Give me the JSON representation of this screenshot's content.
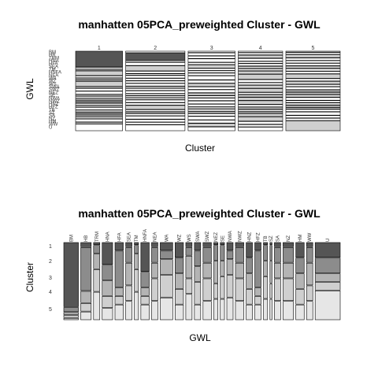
{
  "chart_data": [
    {
      "type": "mosaic",
      "title": "manhatten 05PCA_preweighted Cluster - GWL",
      "xlabel": "Cluster",
      "ylabel": "GWL",
      "clusters": [
        "1",
        "2",
        "3",
        "4",
        "5"
      ],
      "cluster_widths": [
        0.19,
        0.24,
        0.19,
        0.18,
        0.22
      ],
      "gwl_labels": [
        "BM",
        "HB",
        "TRM",
        "HNA",
        "HFA",
        "SEA",
        "TM",
        "HNFA",
        "NEA",
        "WA",
        "WZ",
        "WS",
        "SWA",
        "SWZ",
        "NEZ",
        "SE",
        "NWA",
        "NWZ",
        "HNZ",
        "HFZ",
        "TB",
        "SZ",
        "SA",
        "NZ",
        "HM",
        "WW",
        "U"
      ],
      "gwl_shares": [
        0.07,
        0.05,
        0.03,
        0.05,
        0.04,
        0.03,
        0.02,
        0.04,
        0.03,
        0.06,
        0.04,
        0.03,
        0.03,
        0.04,
        0.02,
        0.02,
        0.03,
        0.04,
        0.03,
        0.03,
        0.02,
        0.01,
        0.03,
        0.05,
        0.04,
        0.03,
        0.12
      ],
      "matrix": [
        [
          0.9,
          0.05,
          0.02,
          0.3,
          0.1,
          0.05,
          0.02,
          0.4,
          0.05,
          0.1,
          0.2,
          0.05,
          0.1,
          0.05,
          0.02,
          0.02,
          0.1,
          0.05,
          0.2,
          0.1,
          0.02,
          0.02,
          0.05,
          0.05,
          0.2,
          0.05,
          0.2
        ],
        [
          0.05,
          0.6,
          0.1,
          0.2,
          0.5,
          0.2,
          0.1,
          0.2,
          0.2,
          0.1,
          0.2,
          0.1,
          0.2,
          0.2,
          0.2,
          0.2,
          0.1,
          0.2,
          0.2,
          0.5,
          0.2,
          0.2,
          0.2,
          0.2,
          0.2,
          0.2,
          0.2
        ],
        [
          0.02,
          0.15,
          0.2,
          0.2,
          0.1,
          0.3,
          0.2,
          0.1,
          0.2,
          0.2,
          0.2,
          0.3,
          0.2,
          0.2,
          0.3,
          0.2,
          0.2,
          0.2,
          0.2,
          0.1,
          0.2,
          0.3,
          0.2,
          0.2,
          0.2,
          0.3,
          0.1
        ],
        [
          0.02,
          0.1,
          0.3,
          0.15,
          0.1,
          0.2,
          0.3,
          0.1,
          0.3,
          0.3,
          0.2,
          0.2,
          0.3,
          0.3,
          0.2,
          0.3,
          0.3,
          0.3,
          0.2,
          0.1,
          0.3,
          0.2,
          0.3,
          0.3,
          0.2,
          0.2,
          0.1
        ],
        [
          0.01,
          0.1,
          0.38,
          0.15,
          0.2,
          0.25,
          0.38,
          0.2,
          0.25,
          0.3,
          0.2,
          0.35,
          0.2,
          0.25,
          0.28,
          0.28,
          0.3,
          0.25,
          0.2,
          0.2,
          0.28,
          0.28,
          0.25,
          0.25,
          0.2,
          0.25,
          0.4
        ]
      ],
      "shades": [
        "#555555",
        "#8c8c8c",
        "#b4b4b4",
        "#cfcfcf",
        "#e6e6e6"
      ]
    },
    {
      "type": "mosaic",
      "title": "manhatten 05PCA_preweighted Cluster - GWL",
      "xlabel": "GWL",
      "ylabel": "Cluster",
      "cluster_labels": [
        "1",
        "2",
        "3",
        "4",
        "5"
      ],
      "gwl_labels": [
        "BM",
        "HB",
        "TRM",
        "HNA",
        "HFA",
        "SEA",
        "TM",
        "HNFA",
        "NEA",
        "WA",
        "WZ",
        "WS",
        "SWA",
        "SWZ",
        "NEZ",
        "SE",
        "NWA",
        "NWZ",
        "HNZ",
        "HFZ",
        "TB",
        "SZ",
        "SA",
        "NZ",
        "HM",
        "WW",
        "U"
      ],
      "gwl_shares": [
        0.07,
        0.05,
        0.03,
        0.05,
        0.04,
        0.03,
        0.02,
        0.04,
        0.03,
        0.06,
        0.04,
        0.03,
        0.03,
        0.04,
        0.02,
        0.02,
        0.03,
        0.04,
        0.03,
        0.03,
        0.02,
        0.01,
        0.03,
        0.05,
        0.04,
        0.03,
        0.12
      ],
      "shades": [
        "#555555",
        "#8c8c8c",
        "#b4b4b4",
        "#cfcfcf",
        "#e6e6e6"
      ]
    }
  ]
}
